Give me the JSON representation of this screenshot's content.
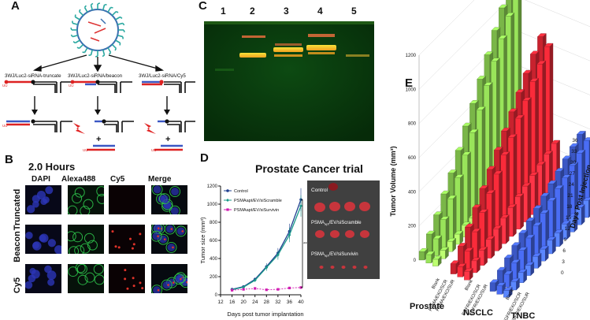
{
  "panelA": {
    "letter": "A",
    "labels": [
      "3WJ/Luc2-siRNA-truncate",
      "3WJ/Luc2-siRNA/beacon",
      "3WJ/Luc2-siRNA/Cy5"
    ],
    "uu": "UU",
    "plus": "+"
  },
  "panelB": {
    "letter": "B",
    "title": "2.0 Hours",
    "columns": [
      "DAPI",
      "Alexa488",
      "Cy5",
      "Merge"
    ],
    "rows": [
      "Truncated",
      "Beacon",
      "Cy5"
    ]
  },
  "panelC": {
    "letter": "C",
    "lanes": [
      "1",
      "2",
      "3",
      "4",
      "5"
    ]
  },
  "panelD": {
    "letter": "D",
    "title": "Prostate  Cancer trial",
    "photo_labels": [
      "Control",
      "PSMA",
      "apt",
      "/EV/siScramble",
      "/EV/siSurvivin"
    ],
    "significance": "***",
    "chart_data": {
      "type": "line",
      "xlabel": "Days post tumor implantation",
      "ylabel": "Tumor size (mm³)",
      "x": [
        16,
        20,
        24,
        28,
        32,
        36,
        40
      ],
      "xticks": [
        "12",
        "16",
        "20",
        "24",
        "28",
        "32",
        "36",
        "40"
      ],
      "yticks": [
        "0",
        "200",
        "400",
        "600",
        "800",
        "1000",
        "1200"
      ],
      "xlim": [
        12,
        40
      ],
      "ylim": [
        0,
        1200
      ],
      "series": [
        {
          "name": "Control",
          "color": "#1f3f8f",
          "values": [
            60,
            90,
            170,
            310,
            460,
            700,
            1050
          ]
        },
        {
          "name": "PSMAapt/EV/siScramble",
          "color": "#1a9a8a",
          "values": [
            55,
            85,
            160,
            300,
            440,
            660,
            980
          ]
        },
        {
          "name": "PSMAapt/EV/siSurvivin",
          "color": "#d01ab0",
          "values": [
            50,
            60,
            70,
            55,
            60,
            75,
            80
          ]
        }
      ]
    }
  },
  "panelE": {
    "letter": "E",
    "chart_data": {
      "type": "bar",
      "zlabel": "Tumor Volume (mm³)",
      "ylabel": "Days Post Injection",
      "zticks": [
        "0",
        "200",
        "400",
        "600",
        "800",
        "1000",
        "1200"
      ],
      "day_ticks": [
        "0",
        "3",
        "6",
        "9",
        "12",
        "15",
        "18",
        "21",
        "24",
        "27",
        "30",
        "33",
        "36"
      ],
      "zlim": [
        0,
        1200
      ],
      "groups": [
        {
          "name": "Prostate",
          "color": "#7ab648",
          "series": [
            {
              "name": "Blank",
              "values": [
                50,
                110,
                180,
                260,
                340,
                430,
                530,
                620,
                720,
                820,
                920,
                1010,
                1100
              ]
            },
            {
              "name": "PSMA/EXO/SCR",
              "values": [
                50,
                100,
                170,
                250,
                330,
                420,
                510,
                600,
                700,
                800,
                890,
                980,
                1070
              ]
            },
            {
              "name": "PSMA/EXO/SUR",
              "values": [
                40,
                50,
                60,
                60,
                70,
                70,
                80,
                80,
                90,
                90,
                100,
                100,
                100
              ]
            }
          ]
        },
        {
          "name": "NSCLC",
          "color": "#c8222e",
          "series": [
            {
              "name": "Blank",
              "values": [
                60,
                120,
                190,
                260,
                330,
                400,
                470,
                540,
                610,
                680,
                750,
                820,
                880
              ]
            },
            {
              "name": "EGFR/EXO/SCR",
              "values": [
                60,
                110,
                180,
                250,
                320,
                390,
                460,
                520,
                590,
                650,
                720,
                780,
                840
              ]
            },
            {
              "name": "EGFR/EXO/SUR",
              "values": [
                50,
                70,
                90,
                110,
                130,
                150,
                170,
                190,
                210,
                230,
                250,
                270,
                290
              ]
            }
          ]
        },
        {
          "name": "TNBC",
          "color": "#3b57c4",
          "series": [
            {
              "name": "Blank",
              "values": [
                50,
                80,
                110,
                140,
                170,
                200,
                230,
                260,
                290,
                320,
                350,
                380,
                410
              ]
            },
            {
              "name": "EGFR/EXO/SCR",
              "values": [
                50,
                75,
                100,
                130,
                160,
                190,
                220,
                250,
                280,
                300,
                330,
                360,
                390
              ]
            },
            {
              "name": "EGFR/EXO/SUR",
              "values": [
                40,
                50,
                60,
                60,
                70,
                70,
                80,
                80,
                90,
                90,
                100,
                100,
                110
              ]
            }
          ]
        }
      ]
    }
  }
}
